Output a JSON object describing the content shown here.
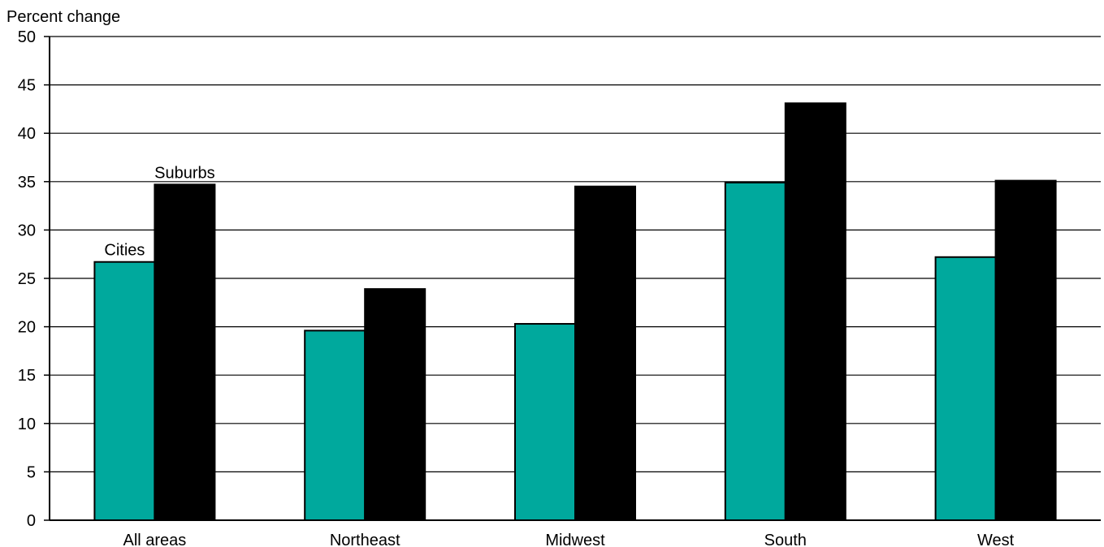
{
  "chart_data": {
    "type": "bar",
    "title": "",
    "xlabel": "",
    "ylabel": "Percent change",
    "ylim": [
      0,
      50
    ],
    "yticks": [
      0,
      5,
      10,
      15,
      20,
      25,
      30,
      35,
      40,
      45,
      50
    ],
    "grid": true,
    "legend": "none",
    "categories": [
      "All areas",
      "Northeast",
      "Midwest",
      "South",
      "West"
    ],
    "series": [
      {
        "name": "Cities",
        "color": "#00a99d",
        "values": [
          26.7,
          19.6,
          20.3,
          34.9,
          27.2
        ]
      },
      {
        "name": "Suburbs",
        "color": "#000000",
        "values": [
          34.7,
          23.9,
          34.5,
          43.1,
          35.1
        ]
      }
    ],
    "annotations": [
      {
        "text": "Cities",
        "series": 0,
        "category": 0
      },
      {
        "text": "Suburbs",
        "series": 1,
        "category": 0
      }
    ]
  }
}
